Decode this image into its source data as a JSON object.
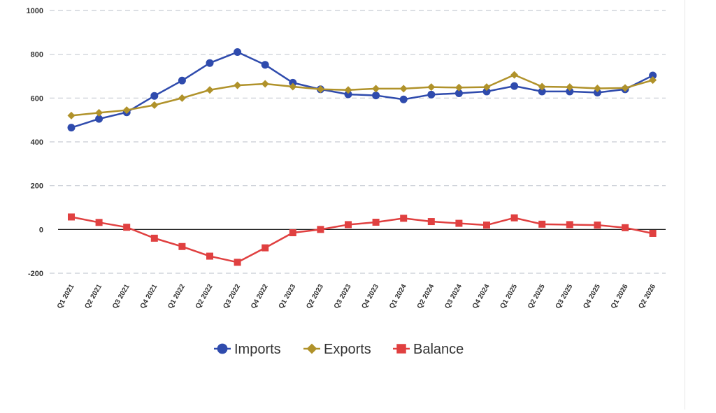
{
  "chart_data": {
    "type": "line",
    "title": "",
    "xlabel": "",
    "ylabel": "",
    "ylim": [
      -200,
      1000
    ],
    "yticks": [
      -200,
      0,
      200,
      400,
      600,
      800,
      1000
    ],
    "ytick_labels": [
      "-200",
      "0",
      "200",
      "400",
      "600",
      "800",
      "1000"
    ],
    "grid": "horizontal dashed",
    "zero_line": true,
    "legend_position": "bottom-center",
    "categories": [
      "Q1 2021",
      "Q2 2021",
      "Q3 2021",
      "Q4 2021",
      "Q1 2022",
      "Q2 2022",
      "Q3 2022",
      "Q4 2022",
      "Q1 2023",
      "Q2 2023",
      "Q3 2023",
      "Q4 2023",
      "Q1 2024",
      "Q2 2024",
      "Q3 2024",
      "Q4 2024",
      "Q1 2025",
      "Q2 2025",
      "Q3 2025",
      "Q4 2025",
      "Q1 2026",
      "Q2 2026"
    ],
    "series": [
      {
        "name": "Imports",
        "color": "#2f4bad",
        "marker": "circle",
        "values": [
          465,
          505,
          535,
          610,
          680,
          760,
          810,
          752,
          670,
          640,
          617,
          612,
          594,
          616,
          622,
          630,
          655,
          630,
          630,
          625,
          640,
          703
        ]
      },
      {
        "name": "Exports",
        "color": "#b0922a",
        "marker": "diamond",
        "values": [
          520,
          533,
          545,
          568,
          600,
          637,
          658,
          665,
          652,
          640,
          637,
          643,
          643,
          650,
          648,
          650,
          706,
          652,
          650,
          644,
          646,
          682
        ]
      },
      {
        "name": "Balance",
        "color": "#e04040",
        "marker": "square",
        "values": [
          57,
          32,
          10,
          -40,
          -78,
          -122,
          -150,
          -84,
          -15,
          0,
          22,
          33,
          51,
          36,
          28,
          20,
          53,
          24,
          22,
          20,
          8,
          -18
        ]
      }
    ]
  }
}
